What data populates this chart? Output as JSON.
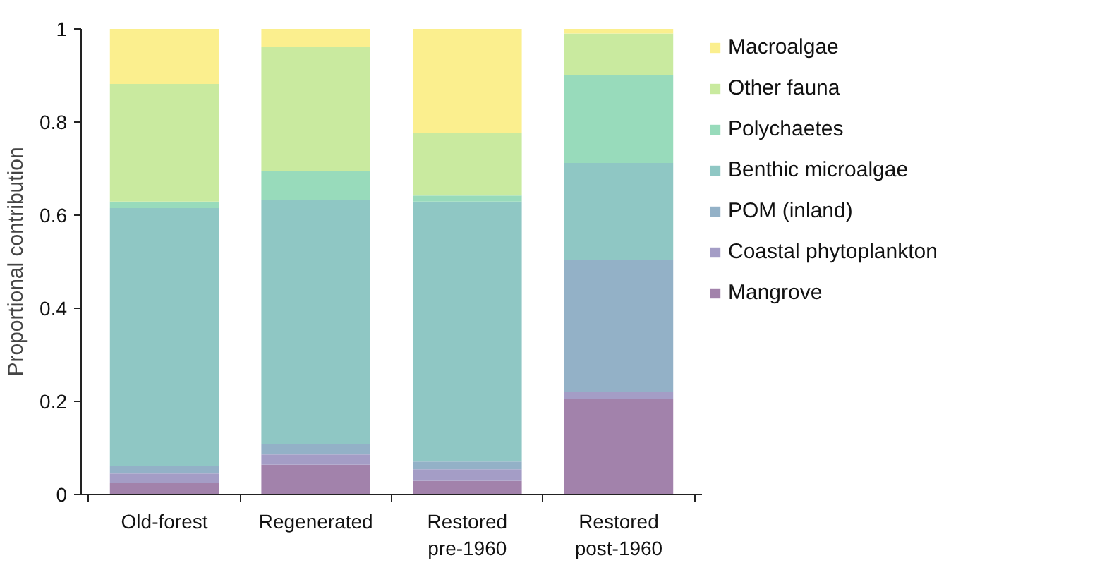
{
  "chart_data": {
    "type": "bar",
    "stacked": true,
    "ylabel": "Proportional contribution",
    "categories": [
      "Old-forest",
      "Regenerated",
      "Restored\npre-1960",
      "Restored\npost-1960"
    ],
    "series": [
      {
        "name": "Mangrove",
        "color": "#a282ab",
        "values": [
          0.025,
          0.064,
          0.029,
          0.206
        ]
      },
      {
        "name": "Coastal phytoplankton",
        "color": "#a49dc6",
        "values": [
          0.02,
          0.022,
          0.025,
          0.014
        ]
      },
      {
        "name": "POM (inland)",
        "color": "#93b1c7",
        "values": [
          0.016,
          0.023,
          0.017,
          0.284
        ]
      },
      {
        "name": "Benthic microalgae",
        "color": "#8fc7c4",
        "values": [
          0.554,
          0.523,
          0.558,
          0.208
        ]
      },
      {
        "name": "Polychaetes",
        "color": "#98dbbb",
        "values": [
          0.014,
          0.063,
          0.013,
          0.189
        ]
      },
      {
        "name": "Other fauna",
        "color": "#c9ea9f",
        "values": [
          0.253,
          0.267,
          0.135,
          0.089
        ]
      },
      {
        "name": "Macroalgae",
        "color": "#fbef8e",
        "values": [
          0.118,
          0.038,
          0.223,
          0.01
        ]
      }
    ],
    "ylim": [
      0,
      1
    ],
    "yticks": [
      0,
      0.2,
      0.4,
      0.6,
      0.8,
      1
    ],
    "grid": false,
    "legend": "right"
  }
}
